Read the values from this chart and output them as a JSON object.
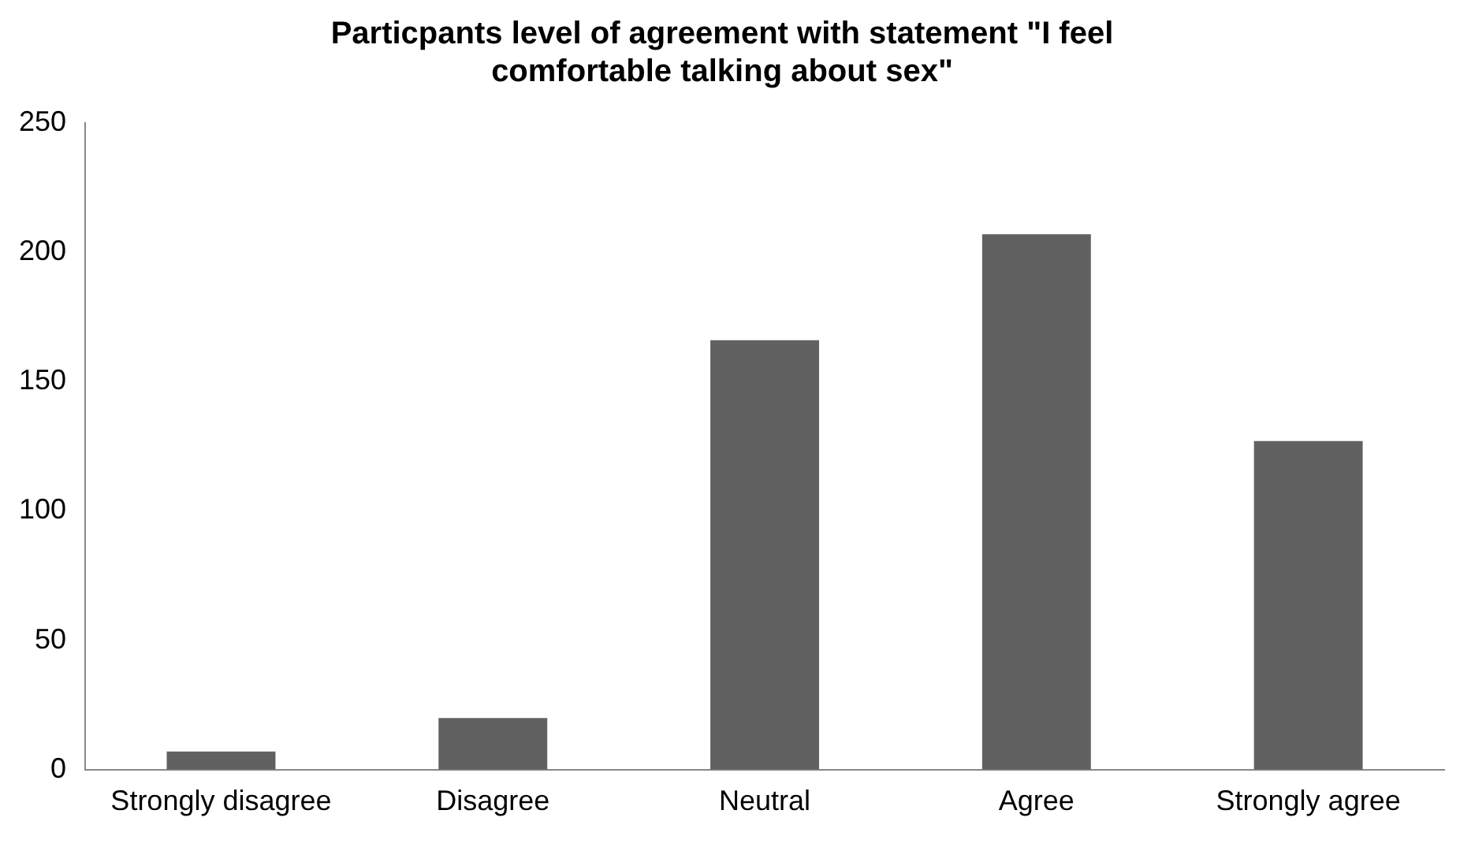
{
  "chart_data": {
    "type": "bar",
    "title": "Particpants level of agreement with statement \"I feel comfortable talking about sex\"",
    "categories": [
      "Strongly disagree",
      "Disagree",
      "Neutral",
      "Agree",
      "Strongly agree"
    ],
    "values": [
      7,
      20,
      166,
      207,
      127
    ],
    "color": "#616161",
    "ylim": [
      0,
      250
    ],
    "yticks": [
      0,
      50,
      100,
      150,
      200,
      250
    ],
    "grid": false,
    "legend": false
  }
}
